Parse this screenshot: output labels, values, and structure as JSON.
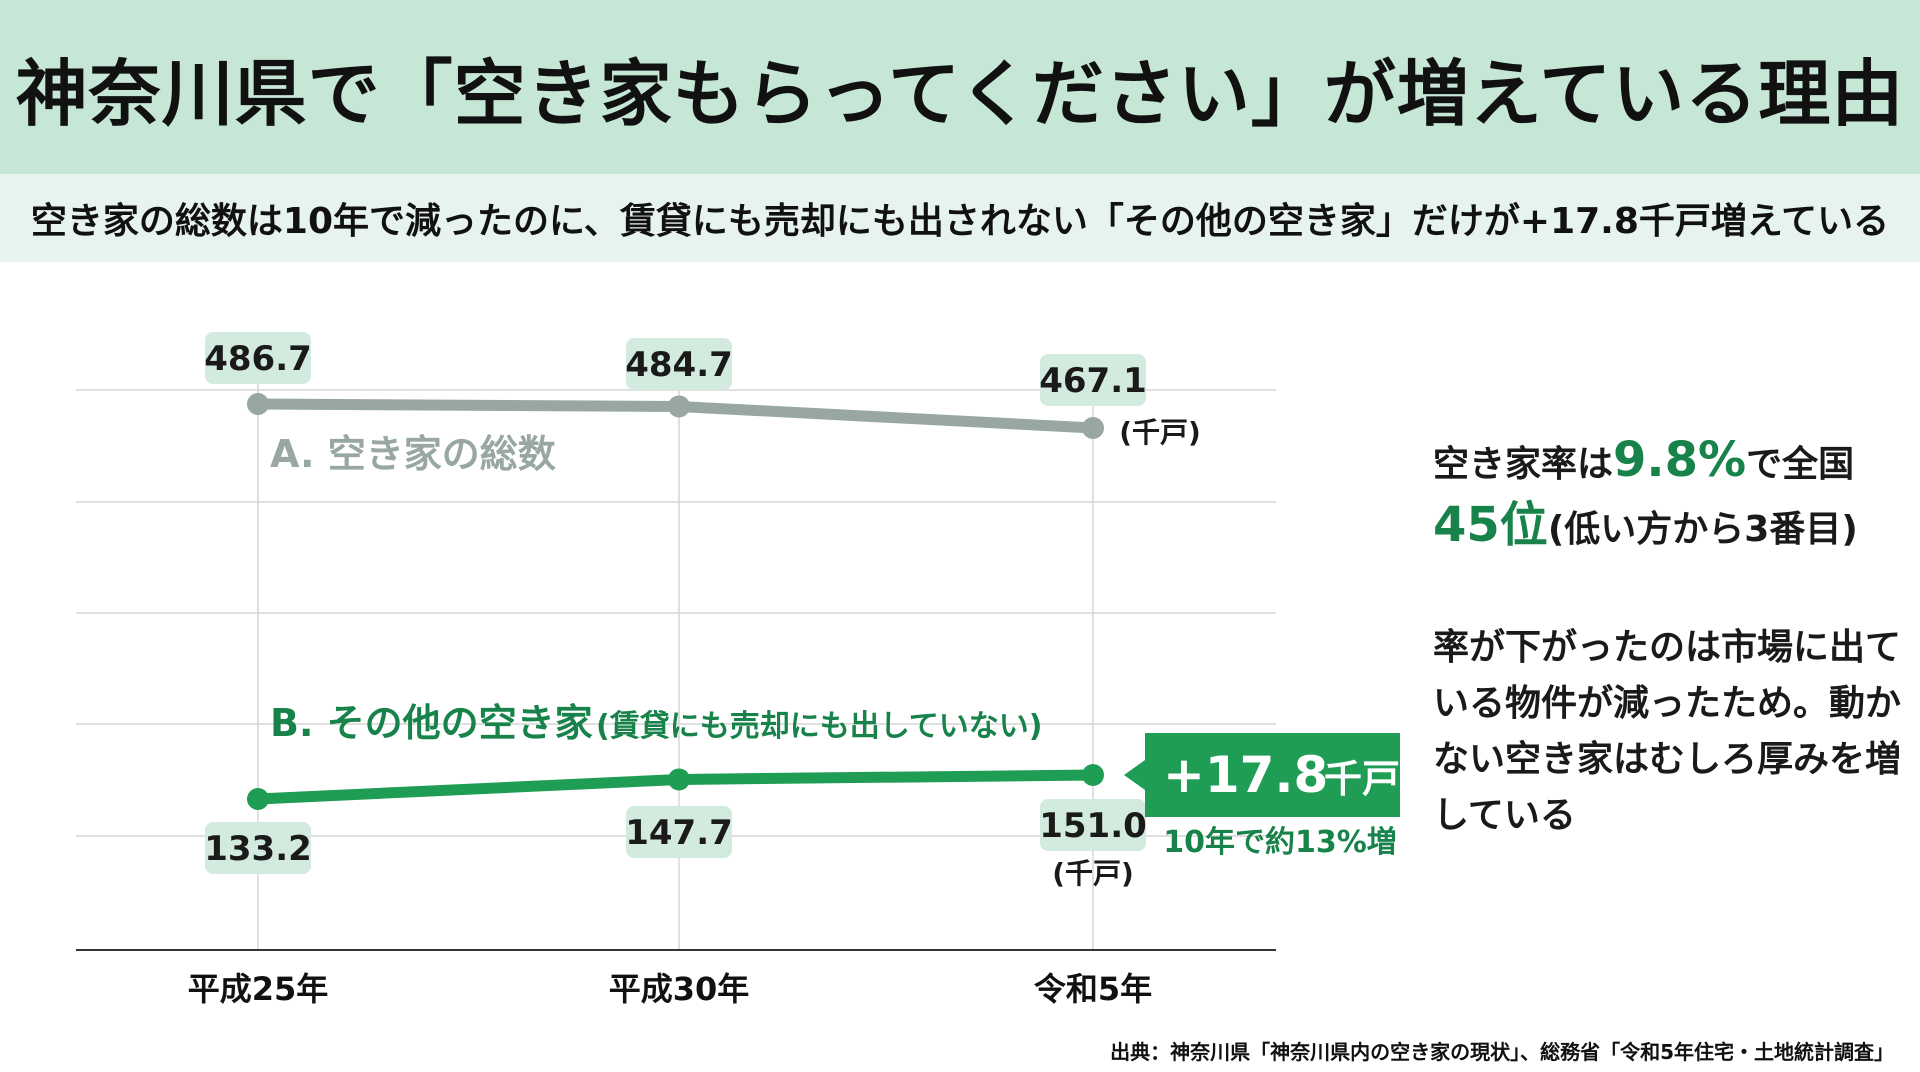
{
  "header": {
    "title": "神奈川県で「空き家もらってください」が増えている理由",
    "subtitle": "空き家の総数は10年で減ったのに、賃貸にも売却にも出されない「その他の空き家」だけが+17.8千戸増えている"
  },
  "colors": {
    "title_band": "#c6e6d6",
    "subtitle_band": "#e7f4ed",
    "series_a": "#98a8a0",
    "series_b": "#1f9d55",
    "label_bg": "#d3ebdf",
    "accent": "#17834a"
  },
  "chart_data": {
    "type": "line",
    "categories": [
      "平成25年",
      "平成30年",
      "令和5年"
    ],
    "series": [
      {
        "name": "A. 空き家の総数",
        "values": [
          486.7,
          484.7,
          467.1
        ],
        "value_labels": [
          "486.7",
          "484.7",
          "467.1"
        ],
        "unit": "(千戸)"
      },
      {
        "name": "B. その他の空き家",
        "name_note": "(賃貸にも売却にも出していない)",
        "values": [
          133.2,
          147.7,
          151.0
        ],
        "value_labels": [
          "133.2",
          "147.7",
          "151.0"
        ],
        "unit": "(千戸)"
      }
    ],
    "callout": {
      "value": "+17.8",
      "unit": "千戸",
      "note": "10年で約13%増"
    },
    "grid": true,
    "ylim": [
      100,
      520
    ]
  },
  "side": {
    "rate_prefix": "空き家率は",
    "rate_value": "9.8%",
    "rate_suffix": "で全国",
    "rank_value": "45位",
    "rank_suffix": "(低い方から3番目)",
    "note": "率が下がったのは市場に出ている物件が減ったため。動かない空き家はむしろ厚みを増している"
  },
  "source": "出典：神奈川県「神奈川県内の空き家の現状」、総務省「令和5年住宅・土地統計調査」"
}
